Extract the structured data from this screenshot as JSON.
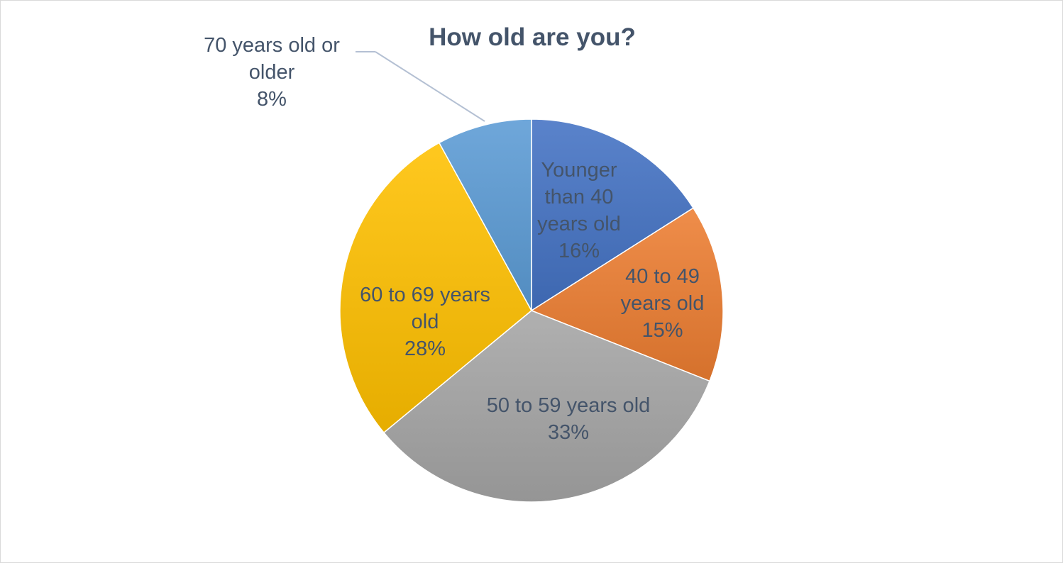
{
  "chart_data": {
    "type": "pie",
    "title": "How old are you?",
    "slices": [
      {
        "category": "Younger than 40 years old",
        "value": 16,
        "label": "16%",
        "color": "#4472c4"
      },
      {
        "category": "40 to 49 years old",
        "value": 15,
        "label": "15%",
        "color": "#ed7d31"
      },
      {
        "category": "50 to 59 years old",
        "value": 33,
        "label": "33%",
        "color": "#a5a5a5"
      },
      {
        "category": "60 to 69 years old",
        "value": 28,
        "label": "28%",
        "color": "#ffc000"
      },
      {
        "category": "70 years old or older",
        "value": 8,
        "label": "8%",
        "color": "#5b9bd5"
      }
    ],
    "legend": "none",
    "start_angle": "12 o'clock",
    "direction": "clockwise"
  }
}
